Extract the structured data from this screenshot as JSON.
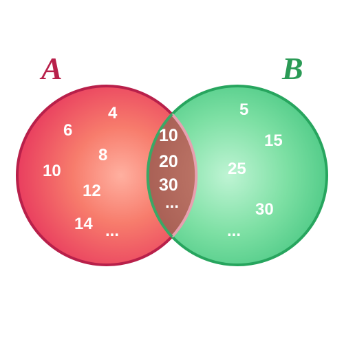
{
  "venn": {
    "set_a": {
      "label": "A",
      "label_color": "#a3224a",
      "elements": [
        "4",
        "6",
        "8",
        "10",
        "12",
        "14",
        "..."
      ]
    },
    "set_b": {
      "label": "B",
      "label_color": "#2a9a55",
      "elements": [
        "5",
        "15",
        "25",
        "30",
        "..."
      ]
    },
    "intersection": {
      "elements": [
        "10",
        "20",
        "30",
        "..."
      ]
    }
  },
  "colors": {
    "set_a_fill": "#f0506a",
    "set_a_edge": "#b8204a",
    "set_b_fill": "#5fd78f",
    "set_b_edge": "#27a55e",
    "intersection_fill": "#b56a5a"
  }
}
